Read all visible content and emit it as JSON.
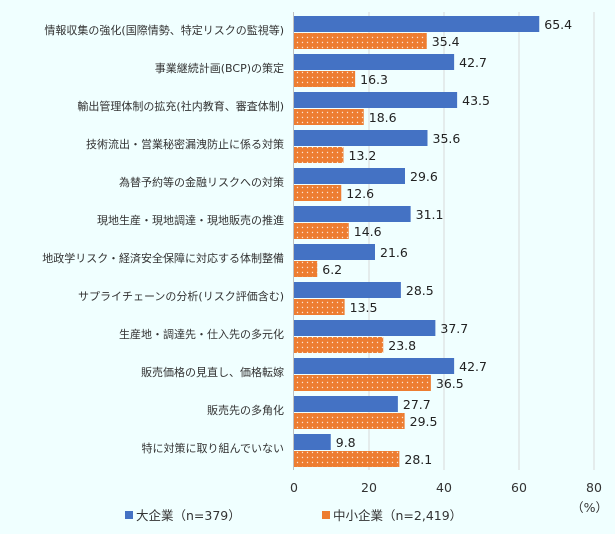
{
  "chart_data": {
    "type": "bar",
    "orientation": "horizontal",
    "categories": [
      "情報収集の強化(国際情勢、特定リスクの監視等)",
      "事業継続計画(BCP)の策定",
      "輸出管理体制の拡充(社内教育、審査体制)",
      "技術流出・営業秘密漏洩防止に係る対策",
      "為替予約等の金融リスクへの対策",
      "現地生産・現地調達・現地販売の推進",
      "地政学リスク・経済安全保障に対応する体制整備",
      "サプライチェーンの分析(リスク評価含む)",
      "生産地・調達先・仕入先の多元化",
      "販売価格の見直し、価格転嫁",
      "販売先の多角化",
      "特に対策に取り組んでいない"
    ],
    "series": [
      {
        "name": "大企業（n=379）",
        "color": "#4472C4",
        "values": [
          65.4,
          42.7,
          43.5,
          35.6,
          29.6,
          31.1,
          21.6,
          28.5,
          37.7,
          42.7,
          27.7,
          9.8
        ]
      },
      {
        "name": "中小企業（n=2,419）",
        "color": "#ED7D31",
        "pattern": "dotted",
        "values": [
          35.4,
          16.3,
          18.6,
          13.2,
          12.6,
          14.6,
          6.2,
          13.5,
          23.8,
          36.5,
          29.5,
          28.1
        ]
      }
    ],
    "xlim": [
      0,
      80
    ],
    "xticks": [
      "0",
      "20",
      "40",
      "60",
      "80"
    ],
    "xlabel": "（%）",
    "grid": true,
    "legend": "bottom"
  }
}
